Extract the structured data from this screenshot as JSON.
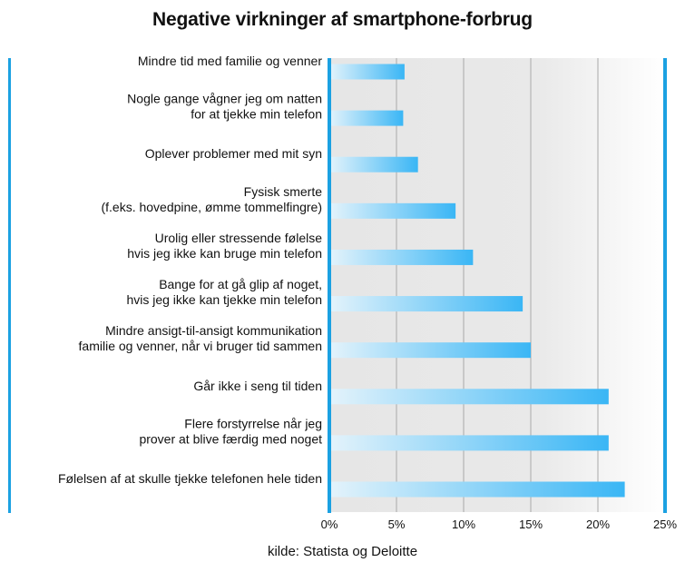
{
  "chart_data": {
    "type": "bar",
    "orientation": "horizontal",
    "title": "Negative virkninger af smartphone-forbrug",
    "source": "kilde: Statista og Deloitte",
    "xlim": [
      0,
      25
    ],
    "xticks": [
      "0%",
      "5%",
      "10%",
      "15%",
      "20%",
      "25%"
    ],
    "grid": true,
    "categories": [
      [
        "Mindre tid med familie og venner"
      ],
      [
        "Nogle gange vågner jeg om natten",
        "for at tjekke min telefon"
      ],
      [
        "Oplever problemer med mit syn"
      ],
      [
        "Fysisk smerte",
        "(f.eks. hovedpine, ømme tommelfingre)"
      ],
      [
        "Urolig eller stressende følelse",
        "hvis jeg ikke kan bruge min telefon"
      ],
      [
        "Bange for at gå glip af noget,",
        "hvis jeg ikke kan tjekke min telefon"
      ],
      [
        "Mindre ansigt-til-ansigt kommunikation",
        "familie og venner, når vi bruger tid sammen"
      ],
      [
        "Går ikke i seng til tiden"
      ],
      [
        "Flere forstyrrelse når jeg",
        "prover at blive færdig med noget"
      ],
      [
        "Følelsen af at skulle tjekke telefonen hele tiden"
      ]
    ],
    "values": [
      5.6,
      5.5,
      6.6,
      9.4,
      10.7,
      14.4,
      15.0,
      20.8,
      20.8,
      22.0
    ],
    "colors": {
      "bar_start": "#e4f3fb",
      "bar_end": "#3ab6f5",
      "axis": "#1ba1e2",
      "grid": "#a9a9a9"
    }
  }
}
